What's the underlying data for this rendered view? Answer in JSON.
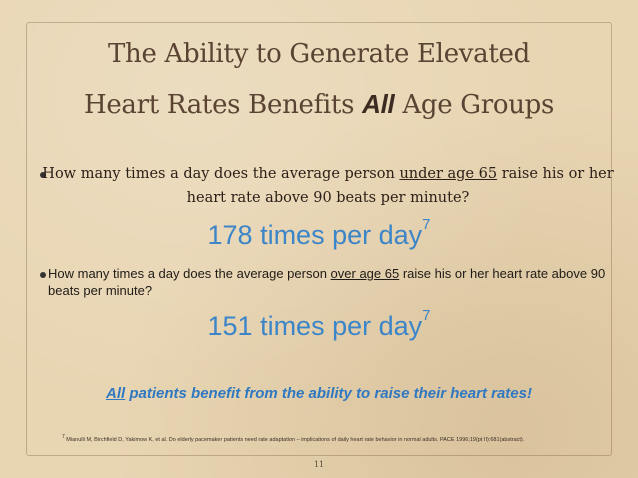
{
  "title": {
    "line1": "The Ability to Generate Elevated",
    "line2_before": "Heart Rates Benefits ",
    "line2_emphasis": "All",
    "line2_after": " Age Groups"
  },
  "bullet1": {
    "before": "How many times a day does the average person ",
    "underlined": "under age 65",
    "after": " raise his or her heart rate above 90 beats per minute?"
  },
  "answer1": {
    "text": "178 times per day",
    "ref": "7"
  },
  "bullet2": {
    "before": "How many times a day does the average person ",
    "underlined": "over age 65",
    "after": " raise his or her heart rate above 90 beats per minute?"
  },
  "answer2": {
    "text": "151 times per day",
    "ref": "7"
  },
  "conclusion": {
    "emphasis": "All",
    "rest": " patients benefit from the ability to raise their heart rates!"
  },
  "reference": {
    "number": "7",
    "text": " Mianulli M, Birchfield D, Yakimow K, et al. Do elderly pacemaker patients need rate adaptation – implications of daily heart rate behavior in normal adults. PACE 1996;19(pt II):681(abstract)."
  },
  "page_number": "11",
  "colors": {
    "accent": "#3b85c8",
    "title": "#5a4333",
    "background": "#e8d5b2"
  }
}
